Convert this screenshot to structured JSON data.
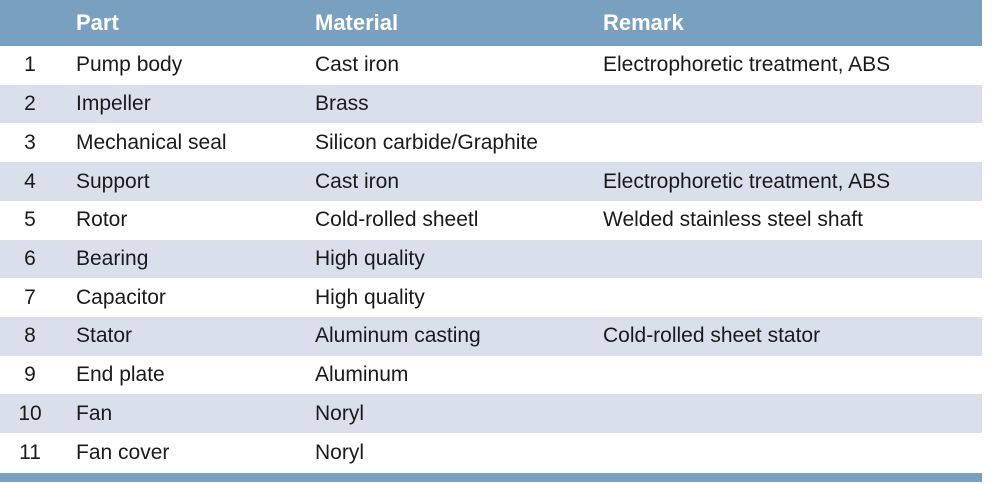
{
  "table": {
    "headers": [
      {
        "key": "no",
        "label": ""
      },
      {
        "key": "part",
        "label": "Part"
      },
      {
        "key": "material",
        "label": "Material"
      },
      {
        "key": "remark",
        "label": "Remark"
      }
    ],
    "rows": [
      [
        "1",
        "Pump body",
        "Cast iron",
        "Electrophoretic treatment, ABS"
      ],
      [
        "2",
        "Impeller",
        "Brass",
        ""
      ],
      [
        "3",
        "Mechanical seal",
        "Silicon carbide/Graphite",
        ""
      ],
      [
        "4",
        "Support",
        "Cast iron",
        "Electrophoretic treatment, ABS"
      ],
      [
        "5",
        "Rotor",
        "Cold-rolled sheetl",
        "Welded stainless steel shaft"
      ],
      [
        "6",
        "Bearing",
        "High quality",
        ""
      ],
      [
        "7",
        "Capacitor",
        "High quality",
        ""
      ],
      [
        "8",
        "Stator",
        "Aluminum casting",
        "Cold-rolled sheet stator"
      ],
      [
        "9",
        "End plate",
        "Aluminum",
        ""
      ],
      [
        "10",
        "Fan",
        "Noryl",
        ""
      ],
      [
        "11",
        "Fan cover",
        "Noryl",
        ""
      ]
    ],
    "colors": {
      "header_bg": "#7AA0C0",
      "stripe_bg": "#D9E0EC",
      "header_text": "#FFFFFF",
      "body_text": "#1A1A1A",
      "footer_bar": "#7AA0C0"
    }
  }
}
